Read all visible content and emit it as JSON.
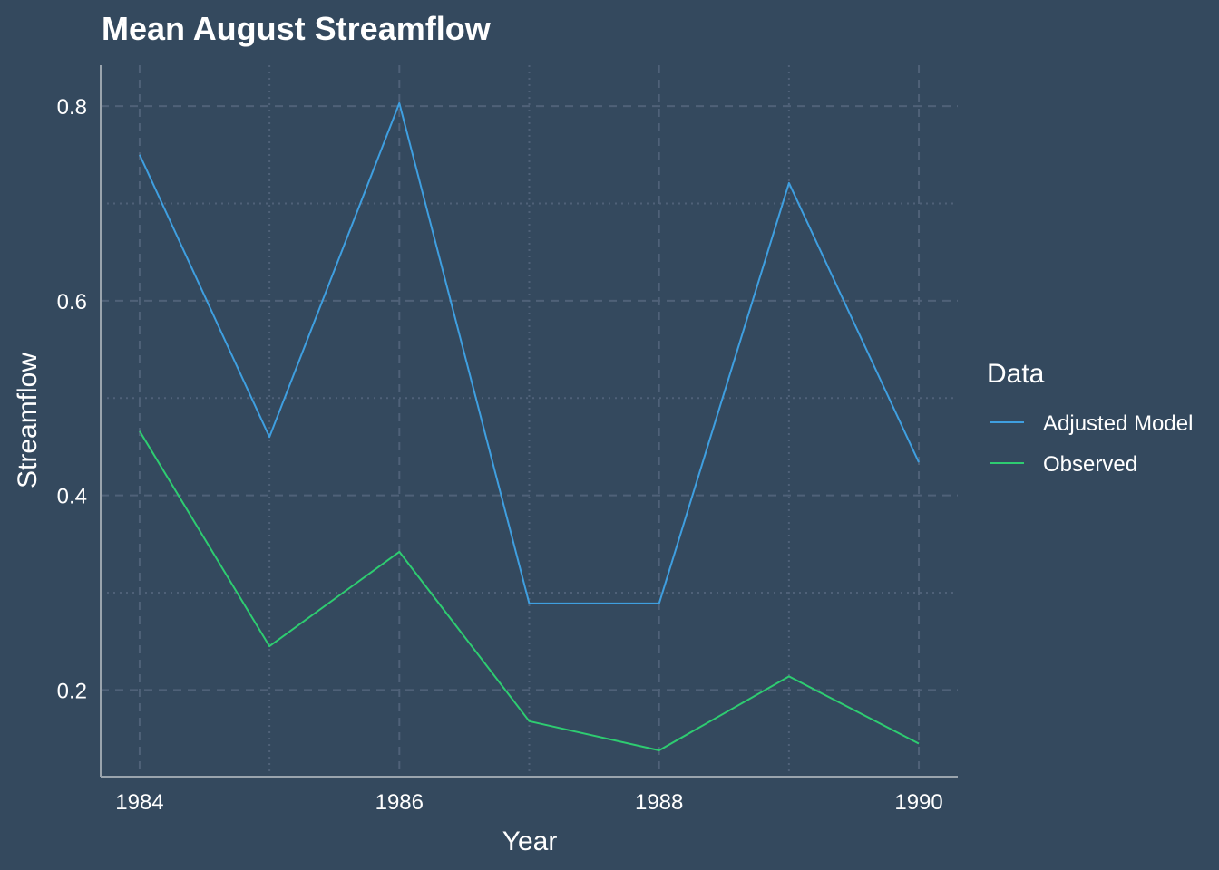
{
  "chart_data": {
    "type": "line",
    "title": "Mean August Streamflow",
    "xlabel": "Year",
    "ylabel": "Streamflow",
    "x": [
      1984,
      1985,
      1986,
      1987,
      1988,
      1989,
      1990
    ],
    "xlim": [
      1983.7,
      1990.3
    ],
    "ylim": [
      0.111,
      0.842
    ],
    "x_major_ticks": [
      1984,
      1986,
      1988,
      1990
    ],
    "x_minor_ticks": [
      1985,
      1987,
      1989
    ],
    "y_major_ticks": [
      0.2,
      0.4,
      0.6,
      0.8
    ],
    "y_minor_ticks": [
      0.3,
      0.5,
      0.7
    ],
    "x_tick_labels": [
      "1984",
      "1986",
      "1988",
      "1990"
    ],
    "y_tick_labels": [
      "0.2",
      "0.4",
      "0.6",
      "0.8"
    ],
    "grid": true,
    "legend_title": "Data",
    "legend_position": "right",
    "series": [
      {
        "name": "Adjusted Model",
        "color": "#3f9fe0",
        "values": [
          0.75,
          0.46,
          0.803,
          0.289,
          0.289,
          0.721,
          0.434
        ]
      },
      {
        "name": "Observed",
        "color": "#2ecc71",
        "values": [
          0.466,
          0.245,
          0.342,
          0.168,
          0.138,
          0.214,
          0.145
        ]
      }
    ]
  },
  "colors": {
    "background": "#34495e",
    "grid": "#4f6178",
    "axis": "#9aa4ad",
    "text": "#ffffff"
  }
}
